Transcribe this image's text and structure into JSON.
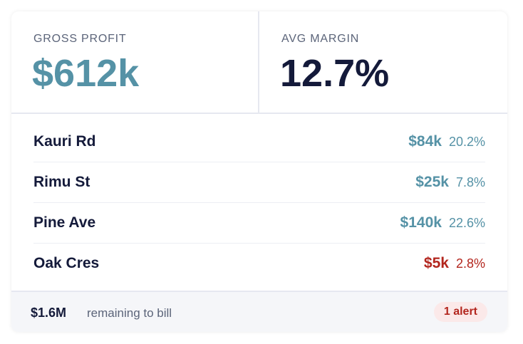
{
  "kpis": [
    {
      "label": "GROSS PROFIT",
      "value": "$612k",
      "color": "#5592a6"
    },
    {
      "label": "AVG MARGIN",
      "value": "12.7%",
      "color": "#141a3a"
    }
  ],
  "rows": [
    {
      "name": "Kauri Rd",
      "amount": "$84k",
      "margin": "20.2%",
      "color": "#5592a6"
    },
    {
      "name": "Rimu St",
      "amount": "$25k",
      "margin": "7.8%",
      "color": "#5592a6"
    },
    {
      "name": "Pine Ave",
      "amount": "$140k",
      "margin": "22.6%",
      "color": "#5592a6"
    },
    {
      "name": "Oak Cres",
      "amount": "$5k",
      "margin": "2.8%",
      "color": "#b3261e"
    }
  ],
  "footer": {
    "amount": "$1.6M",
    "text": "remaining to bill",
    "alert": "1 alert"
  }
}
